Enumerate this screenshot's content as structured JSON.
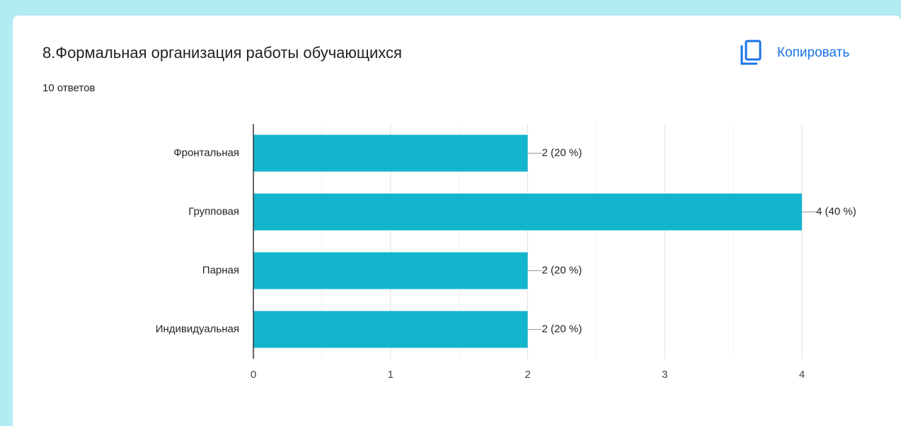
{
  "chart_data": {
    "type": "bar",
    "orientation": "horizontal",
    "title": "8.Формальная организация работы обучающихся",
    "subtitle": "10 ответов",
    "action": "Копировать",
    "categories": [
      "Фронтальная",
      "Групповая",
      "Парная",
      "Индивидуальная"
    ],
    "values": [
      2,
      4,
      2,
      2
    ],
    "value_labels": [
      "2 (20 %)",
      "4 (40 %)",
      "2 (20 %)",
      "2 (20 %)"
    ],
    "color": "#12b5cb",
    "xlim": [
      0,
      4
    ],
    "xticks": [
      0,
      1,
      2,
      3,
      4
    ],
    "minor_xticks": [
      0.5,
      1.5,
      2.5,
      3.5
    ],
    "grid": true
  }
}
